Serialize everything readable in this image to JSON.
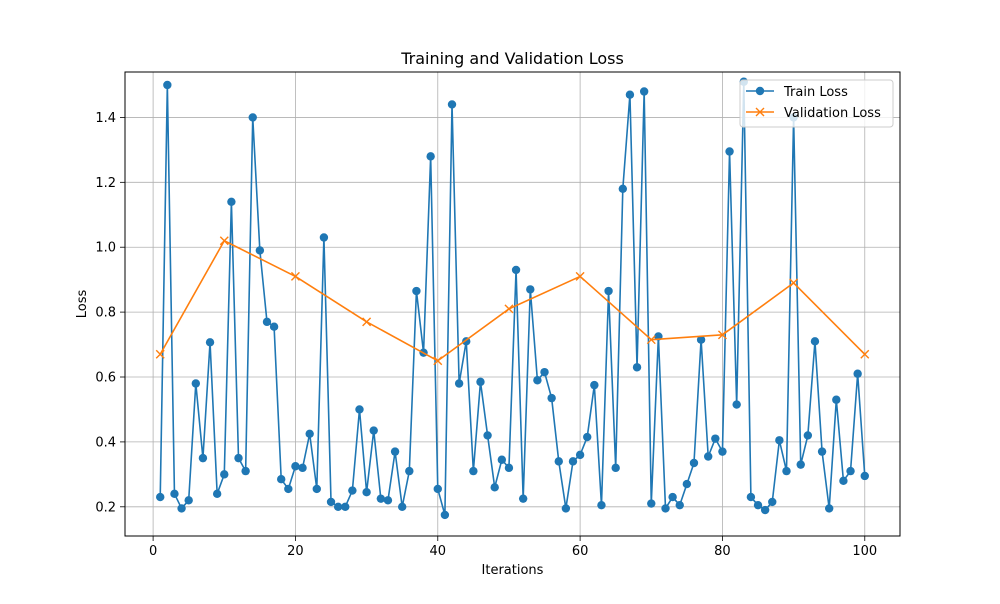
{
  "chart_data": {
    "type": "line",
    "title": "Training and Validation Loss",
    "xlabel": "Iterations",
    "ylabel": "Loss",
    "xlim": [
      -3.95,
      104.95
    ],
    "ylim": [
      0.11,
      1.54
    ],
    "xticks": [
      0,
      20,
      40,
      60,
      80,
      100
    ],
    "yticks": [
      0.2,
      0.4,
      0.6,
      0.8,
      1.0,
      1.2,
      1.4
    ],
    "xtick_labels": [
      "0",
      "20",
      "40",
      "60",
      "80",
      "100"
    ],
    "ytick_labels": [
      "0.2",
      "0.4",
      "0.6",
      "0.8",
      "1.0",
      "1.2",
      "1.4"
    ],
    "grid": true,
    "legend_position": "top-right",
    "series": [
      {
        "name": "Train Loss",
        "color": "#1f77b4",
        "marker": "circle",
        "x": [
          1,
          2,
          3,
          4,
          5,
          6,
          7,
          8,
          9,
          10,
          11,
          12,
          13,
          14,
          15,
          16,
          17,
          18,
          19,
          20,
          21,
          22,
          23,
          24,
          25,
          26,
          27,
          28,
          29,
          30,
          31,
          32,
          33,
          34,
          35,
          36,
          37,
          38,
          39,
          40,
          41,
          42,
          43,
          44,
          45,
          46,
          47,
          48,
          49,
          50,
          51,
          52,
          53,
          54,
          55,
          56,
          57,
          58,
          59,
          60,
          61,
          62,
          63,
          64,
          65,
          66,
          67,
          68,
          69,
          70,
          71,
          72,
          73,
          74,
          75,
          76,
          77,
          78,
          79,
          80,
          81,
          82,
          83,
          84,
          85,
          86,
          87,
          88,
          89,
          90,
          91,
          92,
          93,
          94,
          95,
          96,
          97,
          98,
          99,
          100
        ],
        "y": [
          0.23,
          1.5,
          0.24,
          0.195,
          0.22,
          0.58,
          0.35,
          0.707,
          0.24,
          0.3,
          1.14,
          0.35,
          0.31,
          1.4,
          0.99,
          0.77,
          0.755,
          0.285,
          0.255,
          0.325,
          0.32,
          0.425,
          0.255,
          1.03,
          0.215,
          0.2,
          0.2,
          0.25,
          0.5,
          0.245,
          0.435,
          0.225,
          0.22,
          0.37,
          0.2,
          0.31,
          0.865,
          0.675,
          1.28,
          0.255,
          0.175,
          1.44,
          0.58,
          0.71,
          0.31,
          0.585,
          0.42,
          0.26,
          0.345,
          0.32,
          0.93,
          0.225,
          0.87,
          0.59,
          0.615,
          0.535,
          0.34,
          0.195,
          0.34,
          0.36,
          0.415,
          0.575,
          0.205,
          0.865,
          0.32,
          1.18,
          1.47,
          0.63,
          1.48,
          0.21,
          0.725,
          0.195,
          0.23,
          0.205,
          0.27,
          0.335,
          0.715,
          0.355,
          0.41,
          0.37,
          1.295,
          0.515,
          1.51,
          0.23,
          0.205,
          0.19,
          0.215,
          0.405,
          0.31,
          1.4,
          0.33,
          0.42,
          0.71,
          0.37,
          0.195,
          0.53,
          0.28,
          0.31,
          0.61,
          0.295
        ]
      },
      {
        "name": "Validation Loss",
        "color": "#ff7f0e",
        "marker": "x",
        "x": [
          1,
          10,
          20,
          30,
          40,
          50,
          60,
          70,
          80,
          90,
          100
        ],
        "y": [
          0.67,
          1.02,
          0.91,
          0.77,
          0.65,
          0.81,
          0.91,
          0.715,
          0.73,
          0.89,
          0.67
        ]
      }
    ]
  }
}
